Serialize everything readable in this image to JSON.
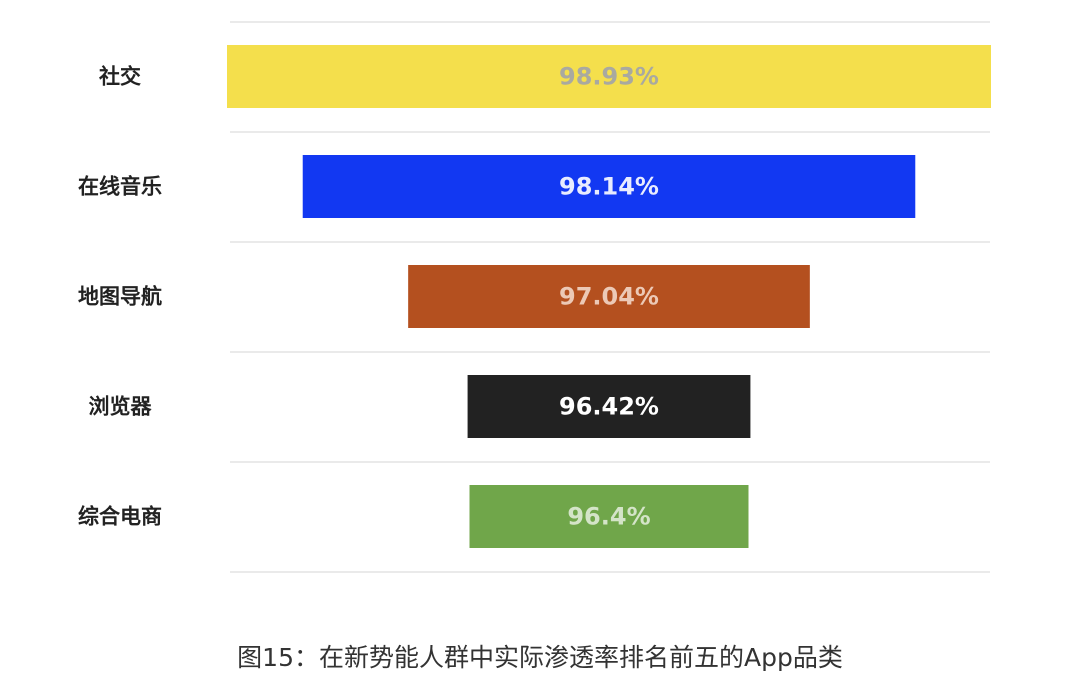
{
  "chart_data": {
    "type": "bar",
    "subtype": "funnel",
    "title": "图15：在新势能人群中实际渗透率排名前五的App品类",
    "categories": [
      "社交",
      "在线音乐",
      "地图导航",
      "浏览器",
      "综合电商"
    ],
    "values": [
      98.93,
      98.14,
      97.04,
      96.42,
      96.4
    ],
    "value_labels": [
      "98.93%",
      "98.14%",
      "97.04%",
      "96.42%",
      "96.4%"
    ],
    "colors": [
      "#f4df4c",
      "#1238f2",
      "#b4501f",
      "#222222",
      "#70a64a"
    ],
    "label_colors": [
      "#a9a9a0",
      "#e8ecff",
      "#ecc9b6",
      "#ffffff",
      "#d4e4c8"
    ],
    "grid": true
  }
}
